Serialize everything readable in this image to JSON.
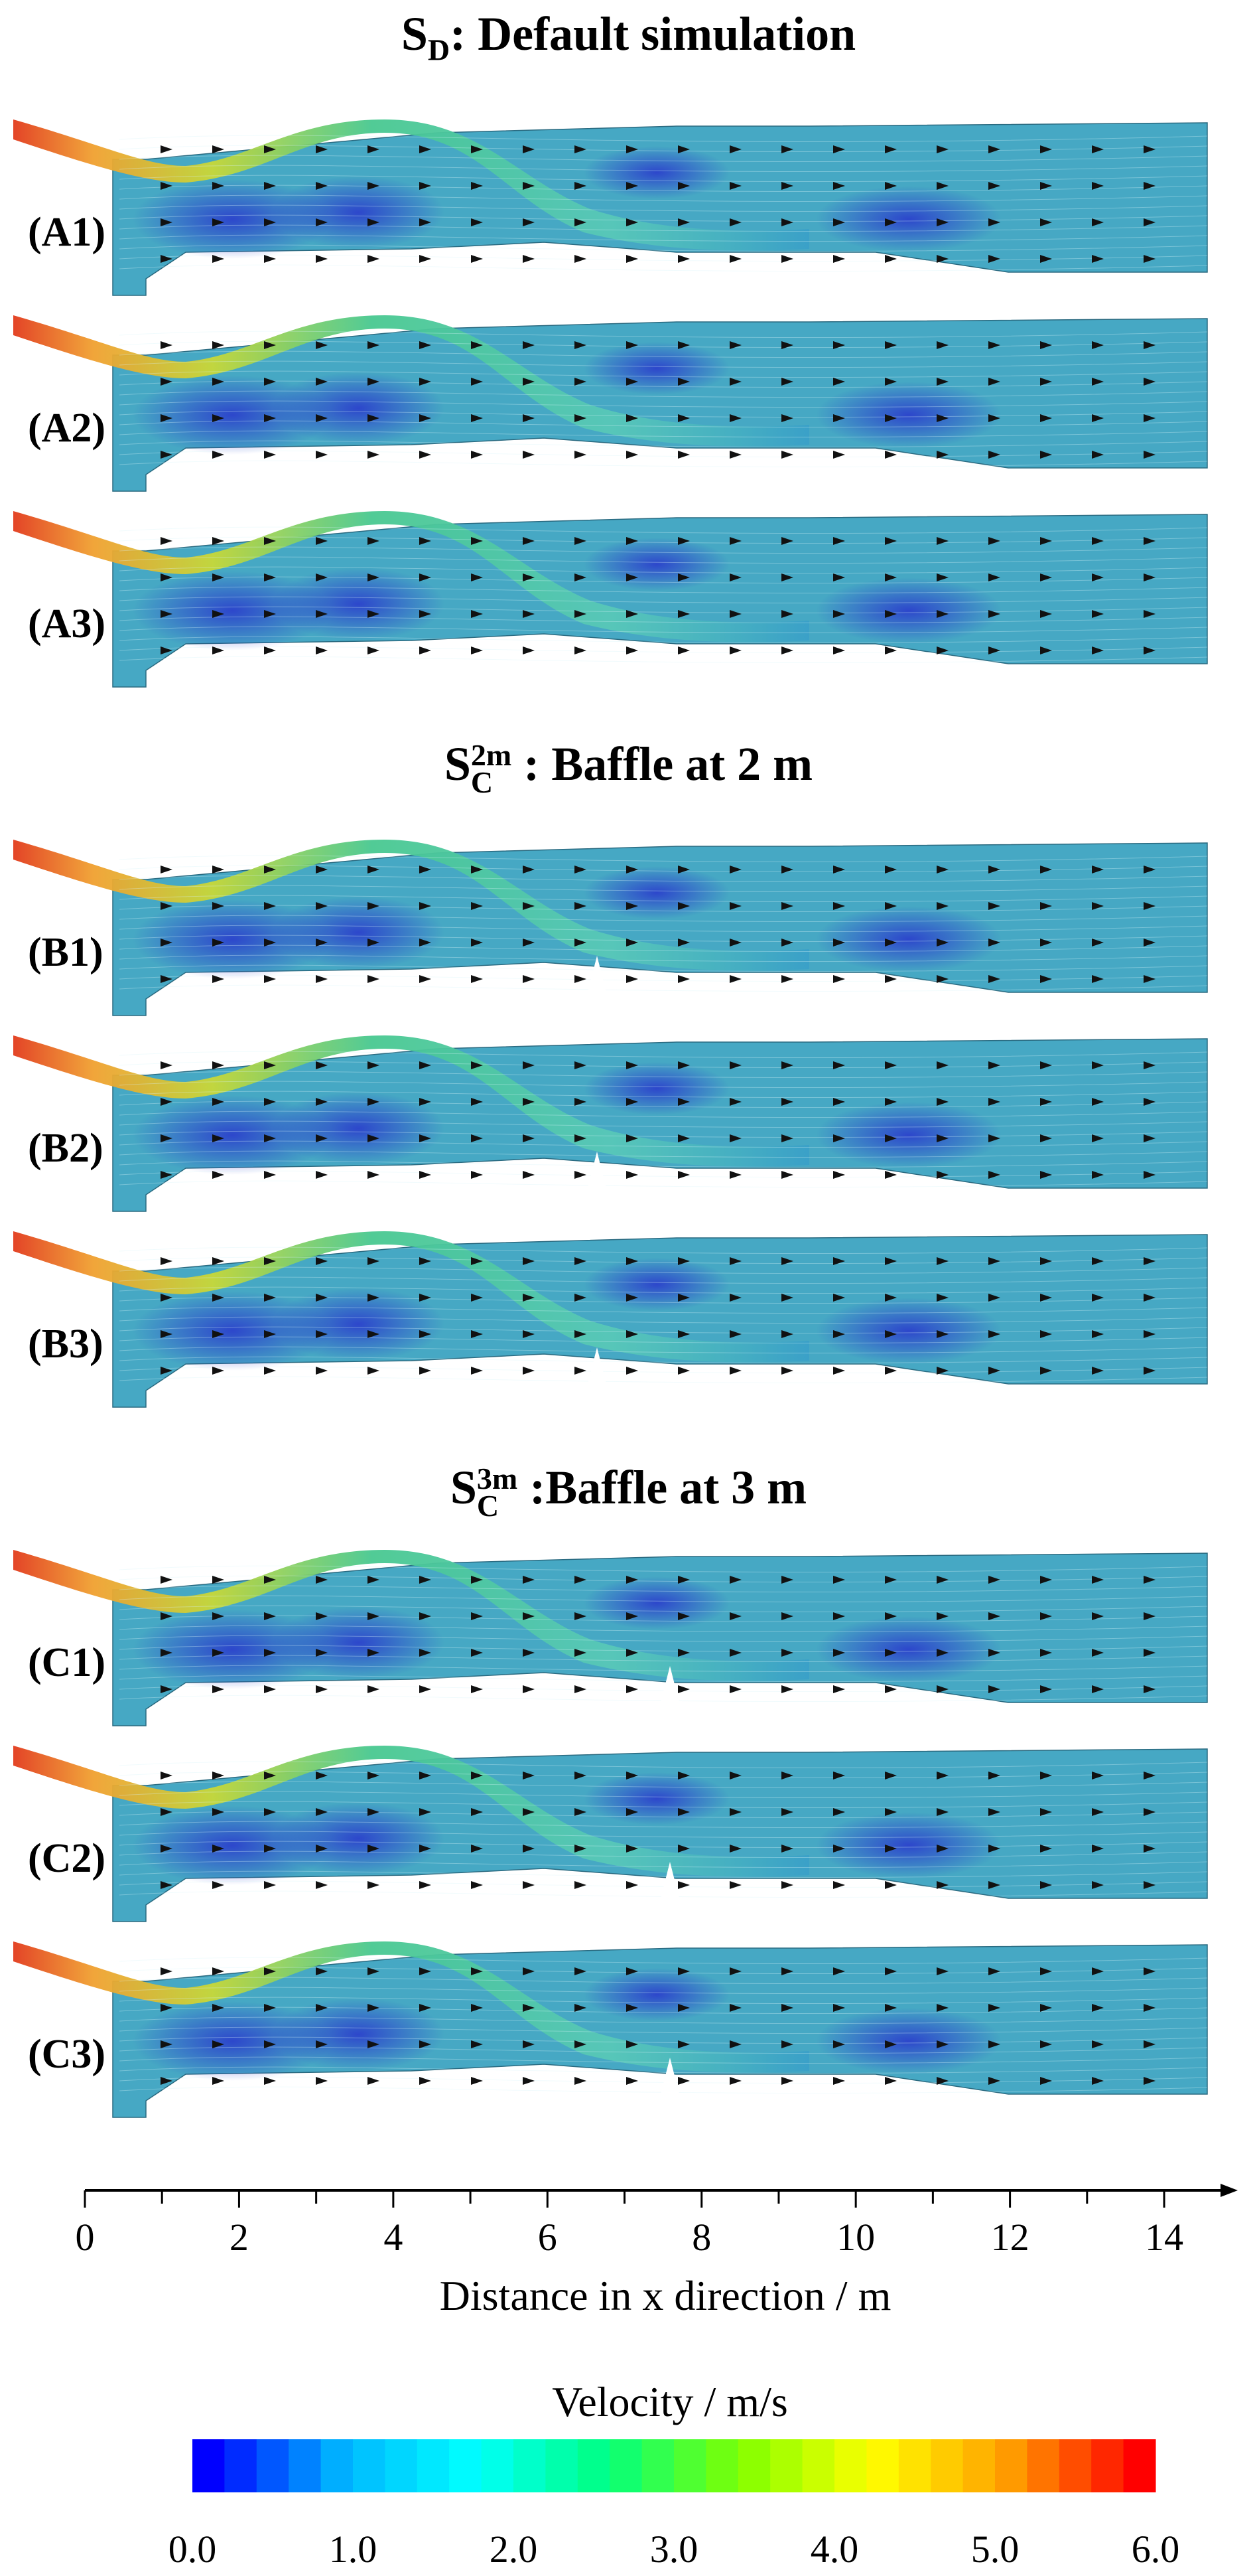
{
  "sections": [
    {
      "title_main": "S",
      "title_sub": "D",
      "title_sup": "",
      "title_rest": ": Default simulation",
      "panels": [
        "(A1)",
        "(A2)",
        "(A3)"
      ],
      "variant": "default"
    },
    {
      "title_main": "S",
      "title_sub": "C",
      "title_sup": "2m",
      "title_rest": " : Baffle at 2 m",
      "panels": [
        "(B1)",
        "(B2)",
        "(B3)"
      ],
      "variant": "baffle2"
    },
    {
      "title_main": "S",
      "title_sub": "C",
      "title_sup": "3m",
      "title_rest": " :Baffle at 3 m",
      "panels": [
        "(C1)",
        "(C2)",
        "(C3)"
      ],
      "variant": "baffle3"
    }
  ],
  "x_axis": {
    "label": "Distance in x direction / m",
    "ticks": [
      "0",
      "2",
      "4",
      "6",
      "8",
      "10",
      "12",
      "14"
    ],
    "range": [
      0,
      14.8
    ]
  },
  "colorbar": {
    "title": "Velocity / m/s",
    "ticks": [
      "0.0",
      "1.0",
      "2.0",
      "3.0",
      "4.0",
      "5.0",
      "6.0"
    ],
    "range": [
      0,
      6
    ],
    "colors": [
      "#0000ff",
      "#00b4ff",
      "#00ffff",
      "#00ff80",
      "#80ff00",
      "#ffff00",
      "#ffa000",
      "#ff0000"
    ]
  }
}
